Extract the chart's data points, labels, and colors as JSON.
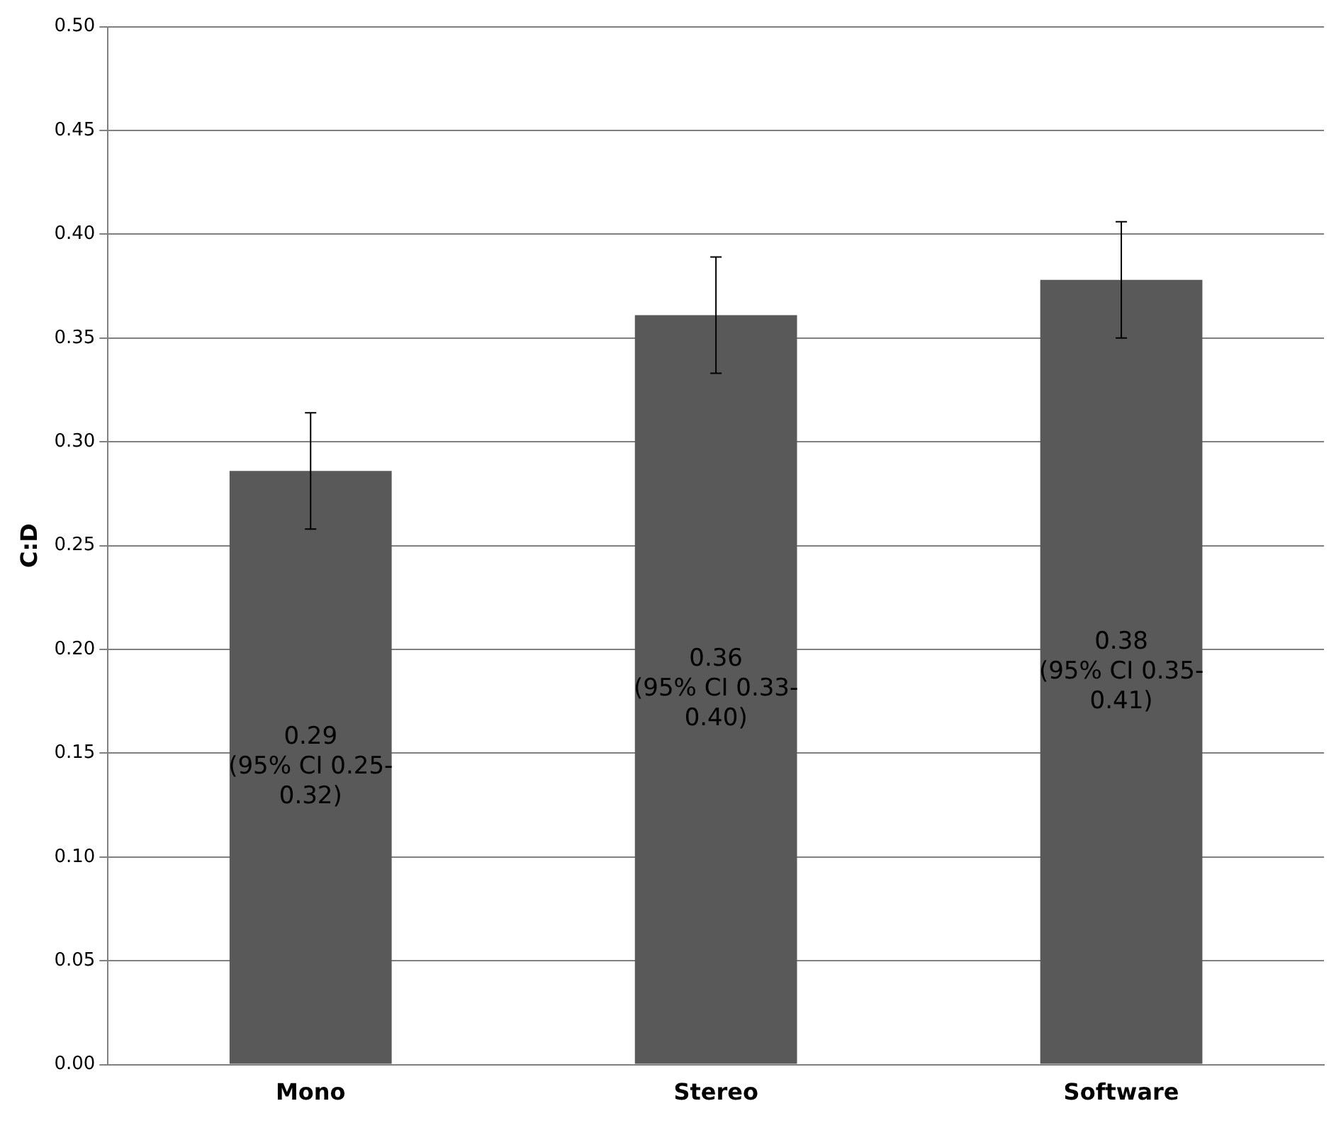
{
  "chart_data": {
    "type": "bar",
    "ylabel": "C:D",
    "categories": [
      "Mono",
      "Stereo",
      "Software"
    ],
    "values": [
      0.286,
      0.361,
      0.378
    ],
    "errors": [
      [
        0.258,
        0.314
      ],
      [
        0.333,
        0.389
      ],
      [
        0.35,
        0.406
      ]
    ],
    "value_labels": [
      "0.29 (95% CI 0.25-0.32)",
      "0.36 (95% CI 0.33-0.40)",
      "0.38 (95% CI 0.35-0.41)"
    ],
    "color": "#595959",
    "ylim": [
      0,
      0.5
    ],
    "yticks": [
      {
        "value": 0,
        "label": "0.00"
      },
      {
        "value": 0.05,
        "label": "0.05"
      },
      {
        "value": 0.1,
        "label": "0.10"
      },
      {
        "value": 0.15,
        "label": "0.15"
      },
      {
        "value": 0.2,
        "label": "0.20"
      },
      {
        "value": 0.25,
        "label": "0.25"
      },
      {
        "value": 0.3,
        "label": "0.30"
      },
      {
        "value": 0.35,
        "label": "0.35"
      },
      {
        "value": 0.4,
        "label": "0.40"
      },
      {
        "value": 0.45,
        "label": "0.45"
      },
      {
        "value": 0.5,
        "label": "0.50"
      }
    ],
    "grid": "y"
  }
}
